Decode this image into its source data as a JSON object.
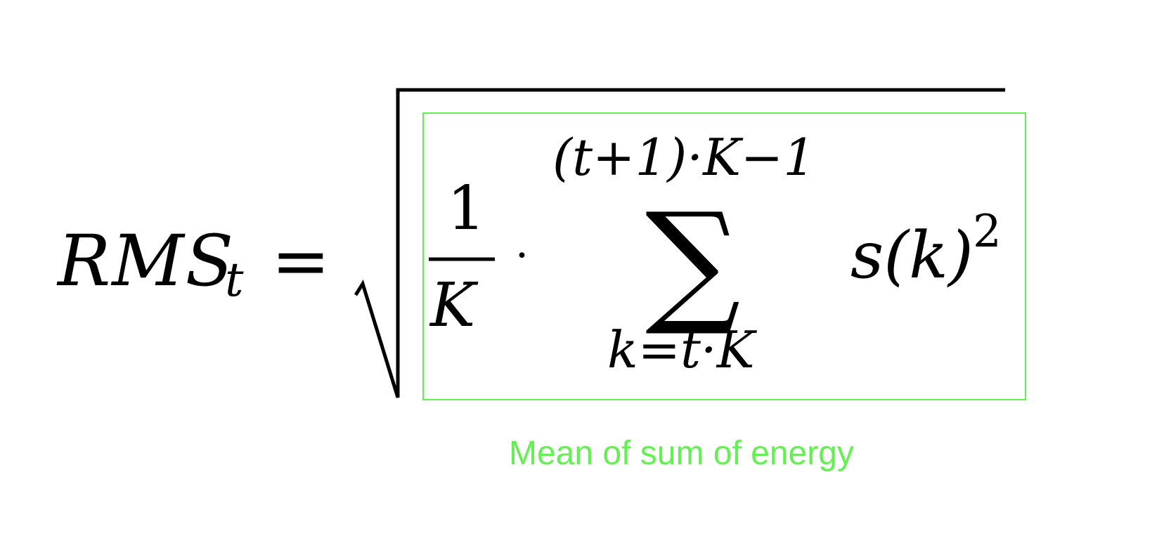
{
  "formula": {
    "lhs_main": "RMS",
    "lhs_subscript": "t",
    "equals": "=",
    "fraction_numerator": "1",
    "fraction_denominator": "K",
    "multiply_dot": "·",
    "sum_symbol": "∑",
    "sum_upper_limit": "(t+1)·K−1",
    "sum_lower_limit": "k=t·K",
    "summand": "s(k)",
    "summand_exponent": "2"
  },
  "annotation": {
    "label": "Mean of sum of energy",
    "color": "#66ee55"
  },
  "colors": {
    "formula": "#000000",
    "highlight": "#66ee55",
    "background": "#ffffff"
  }
}
